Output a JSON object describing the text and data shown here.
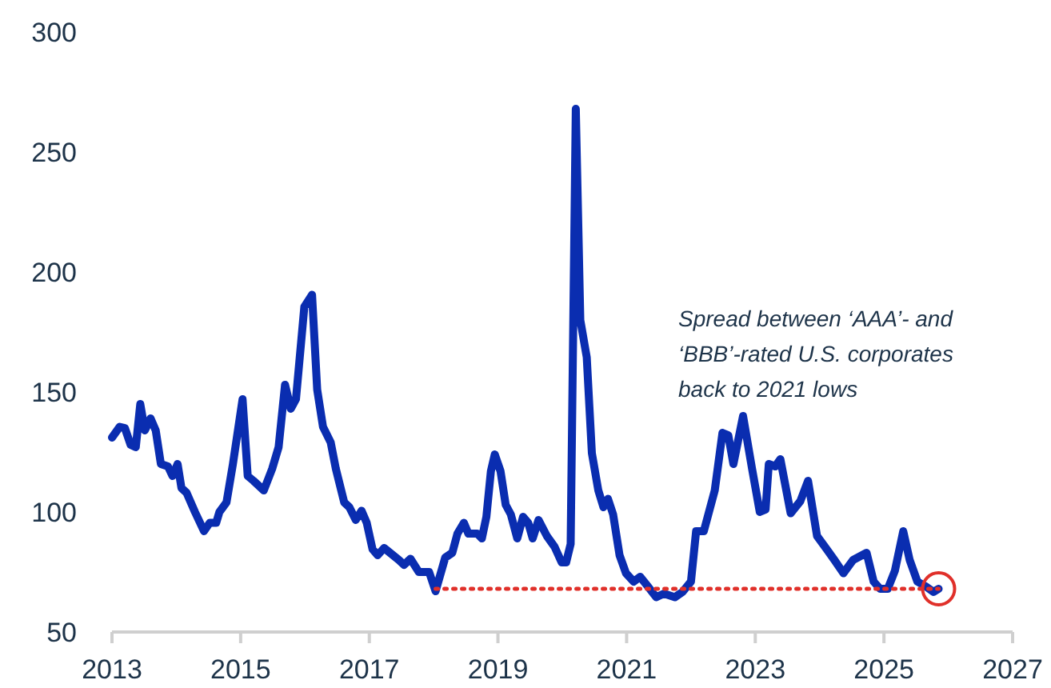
{
  "chart_data": {
    "type": "line",
    "xlim": [
      2013,
      2027
    ],
    "xticks": [
      2013,
      2015,
      2017,
      2019,
      2021,
      2023,
      2025,
      2027
    ],
    "ylim": [
      50,
      300
    ],
    "yticks": [
      50,
      100,
      150,
      200,
      250,
      300
    ],
    "grid": false,
    "annotations": [
      "Spread between ‘AAA’- and ‘BBB’-rated U.S. corporates back to 2021 lows"
    ],
    "series": [
      {
        "color": "#0a2db0",
        "line_style": "solid",
        "x": [
          2013.0,
          2013.12,
          2013.2,
          2013.29,
          2013.37,
          2013.44,
          2013.51,
          2013.6,
          2013.68,
          2013.76,
          2013.87,
          2013.94,
          2014.02,
          2014.08,
          2014.16,
          2014.29,
          2014.43,
          2014.52,
          2014.62,
          2014.67,
          2014.78,
          2014.88,
          2015.03,
          2015.11,
          2015.2,
          2015.36,
          2015.49,
          2015.59,
          2015.69,
          2015.78,
          2015.86,
          2015.99,
          2016.11,
          2016.19,
          2016.28,
          2016.4,
          2016.48,
          2016.61,
          2016.69,
          2016.79,
          2016.88,
          2016.96,
          2017.05,
          2017.13,
          2017.23,
          2017.46,
          2017.54,
          2017.64,
          2017.77,
          2017.93,
          2018.03,
          2018.18,
          2018.29,
          2018.37,
          2018.47,
          2018.54,
          2018.68,
          2018.75,
          2018.82,
          2018.89,
          2018.95,
          2019.04,
          2019.12,
          2019.2,
          2019.3,
          2019.39,
          2019.47,
          2019.54,
          2019.63,
          2019.76,
          2019.88,
          2019.99,
          2020.06,
          2020.13,
          2020.21,
          2020.28,
          2020.38,
          2020.46,
          2020.56,
          2020.64,
          2020.71,
          2020.79,
          2020.89,
          2020.99,
          2021.11,
          2021.21,
          2021.33,
          2021.46,
          2021.58,
          2021.75,
          2021.87,
          2022.0,
          2022.08,
          2022.2,
          2022.37,
          2022.49,
          2022.58,
          2022.66,
          2022.81,
          2022.95,
          2023.07,
          2023.16,
          2023.21,
          2023.31,
          2023.39,
          2023.55,
          2023.7,
          2023.82,
          2023.96,
          2024.11,
          2024.23,
          2024.37,
          2024.52,
          2024.73,
          2024.84,
          2024.94,
          2025.06,
          2025.17,
          2025.3,
          2025.4,
          2025.52,
          2025.65,
          2025.77,
          2025.85
        ],
        "values": [
          131,
          135.5,
          135,
          128,
          127,
          145,
          134,
          139,
          134,
          120,
          119,
          115,
          120,
          110,
          108,
          100,
          92,
          95.5,
          95.5,
          100,
          104,
          120,
          147,
          115,
          113,
          109,
          118,
          127,
          153,
          143,
          147,
          185.5,
          190.5,
          151,
          135.5,
          129,
          118,
          104,
          102,
          96.7,
          100.5,
          95.5,
          84.5,
          82,
          85,
          80,
          78,
          80.5,
          75,
          75,
          67,
          81,
          83,
          91,
          95.5,
          91,
          91,
          89,
          98,
          117,
          124,
          117,
          103,
          99,
          89,
          98,
          95.5,
          89,
          96.7,
          90,
          85.5,
          79,
          79,
          86.7,
          268,
          180,
          164.5,
          124.5,
          109,
          102,
          105.5,
          99,
          82,
          74.5,
          71,
          73,
          69,
          64.5,
          66,
          64.5,
          66.7,
          71,
          92,
          92,
          109,
          133,
          132,
          120,
          140,
          118,
          100,
          101,
          120,
          119,
          122,
          99.5,
          104.5,
          113,
          90,
          84.5,
          80,
          74.5,
          80,
          83,
          71,
          68,
          68,
          75.5,
          92,
          80,
          71,
          69,
          66.7,
          68
        ]
      },
      {
        "color": "#e0302a",
        "line_style": "dotted",
        "x": [
          2018.03,
          2025.85
        ],
        "values": [
          68,
          68
        ]
      }
    ]
  }
}
